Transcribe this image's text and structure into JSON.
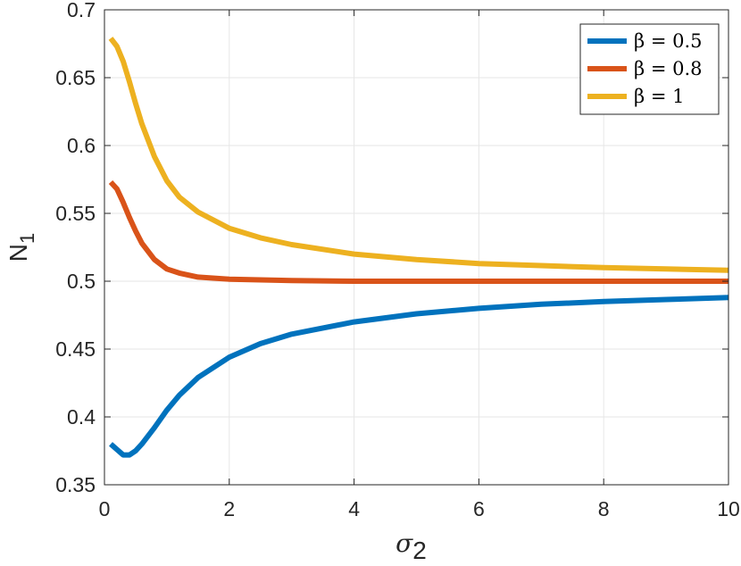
{
  "chart_data": {
    "type": "line",
    "xlabel": "σ",
    "xlabel_sub": "2",
    "ylabel": "N",
    "ylabel_sub": "1",
    "xlim": [
      0,
      10
    ],
    "ylim": [
      0.35,
      0.7
    ],
    "xticks": [
      0,
      2,
      4,
      6,
      8,
      10
    ],
    "xtick_labels": [
      "0",
      "2",
      "4",
      "6",
      "8",
      "10"
    ],
    "yticks": [
      0.35,
      0.4,
      0.45,
      0.5,
      0.55,
      0.6,
      0.65,
      0.7
    ],
    "ytick_labels": [
      "0.35",
      "0.4",
      "0.45",
      "0.5",
      "0.55",
      "0.6",
      "0.65",
      "0.7"
    ],
    "grid": true,
    "legend_position": "top-right",
    "series": [
      {
        "name": "β = 0.5",
        "color": "#0072BD",
        "x": [
          0.1,
          0.2,
          0.3,
          0.4,
          0.5,
          0.6,
          0.8,
          1.0,
          1.2,
          1.5,
          2.0,
          2.5,
          3.0,
          4.0,
          5.0,
          6.0,
          7.0,
          8.0,
          9.0,
          10.0
        ],
        "y": [
          0.38,
          0.376,
          0.372,
          0.372,
          0.375,
          0.38,
          0.392,
          0.405,
          0.416,
          0.429,
          0.444,
          0.454,
          0.461,
          0.47,
          0.476,
          0.48,
          0.483,
          0.485,
          0.4865,
          0.488
        ]
      },
      {
        "name": "β = 0.8",
        "color": "#D95319",
        "x": [
          0.1,
          0.2,
          0.3,
          0.4,
          0.5,
          0.6,
          0.8,
          1.0,
          1.2,
          1.5,
          2.0,
          2.5,
          3.0,
          4.0,
          5.0,
          6.0,
          7.0,
          8.0,
          9.0,
          10.0
        ],
        "y": [
          0.573,
          0.568,
          0.558,
          0.547,
          0.537,
          0.528,
          0.516,
          0.509,
          0.506,
          0.503,
          0.5015,
          0.501,
          0.5005,
          0.5,
          0.5,
          0.5,
          0.5,
          0.5,
          0.5,
          0.5
        ]
      },
      {
        "name": "β = 1",
        "color": "#EDB120",
        "x": [
          0.1,
          0.2,
          0.3,
          0.4,
          0.5,
          0.6,
          0.8,
          1.0,
          1.2,
          1.5,
          2.0,
          2.5,
          3.0,
          4.0,
          5.0,
          6.0,
          7.0,
          8.0,
          9.0,
          10.0
        ],
        "y": [
          0.679,
          0.673,
          0.662,
          0.647,
          0.631,
          0.616,
          0.592,
          0.574,
          0.562,
          0.551,
          0.539,
          0.532,
          0.527,
          0.52,
          0.516,
          0.513,
          0.5115,
          0.51,
          0.509,
          0.508
        ]
      }
    ]
  }
}
